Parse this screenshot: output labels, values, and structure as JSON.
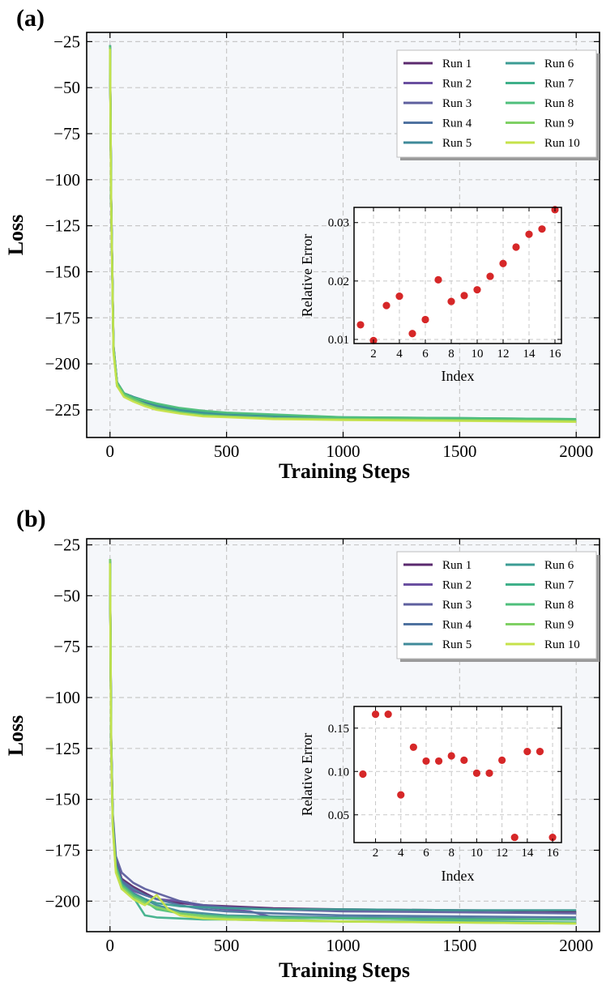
{
  "colors": {
    "plot_bg": "#f5f7fa",
    "grid": "#c8c8c8",
    "marker": "#d62728",
    "runs": [
      "#5b2a6e",
      "#6a4fa0",
      "#5e5f9e",
      "#4f72a0",
      "#3f8a99",
      "#3c9c94",
      "#3fb08a",
      "#4fbf7b",
      "#7fd064",
      "#c6e24a"
    ]
  },
  "chart_data": [
    {
      "panel": "(a)",
      "type": "line",
      "xlabel": "Training Steps",
      "ylabel": "Loss",
      "xlim": [
        -100,
        2100
      ],
      "ylim": [
        -240,
        -20
      ],
      "xticks": [
        0,
        500,
        1000,
        1500,
        2000
      ],
      "yticks": [
        -25,
        -50,
        -75,
        -100,
        -125,
        -150,
        -175,
        -200,
        -225
      ],
      "grid": true,
      "legend_position": "top-right",
      "series": [
        {
          "name": "Run 1",
          "x": [
            0,
            5,
            15,
            30,
            60,
            100,
            150,
            200,
            300,
            400,
            500,
            700,
            1000,
            1500,
            2000
          ],
          "y": [
            -27,
            -110,
            -190,
            -210,
            -216,
            -218,
            -221,
            -223,
            -226,
            -227,
            -228,
            -229,
            -229.5,
            -230,
            -230.5
          ]
        },
        {
          "name": "Run 2",
          "x": [
            0,
            5,
            15,
            30,
            60,
            100,
            150,
            200,
            300,
            400,
            500,
            700,
            1000,
            1500,
            2000
          ],
          "y": [
            -28,
            -112,
            -192,
            -211,
            -216,
            -219,
            -222,
            -224,
            -226,
            -227.5,
            -228,
            -229,
            -230,
            -230.5,
            -231
          ]
        },
        {
          "name": "Run 3",
          "x": [
            0,
            5,
            15,
            30,
            60,
            100,
            150,
            200,
            300,
            400,
            500,
            700,
            1000,
            1500,
            2000
          ],
          "y": [
            -27,
            -110,
            -191,
            -210,
            -216,
            -218,
            -221,
            -223,
            -225,
            -227,
            -227.5,
            -228.5,
            -229.5,
            -230,
            -230.5
          ]
        },
        {
          "name": "Run 4",
          "x": [
            0,
            5,
            15,
            30,
            60,
            100,
            150,
            200,
            300,
            400,
            500,
            700,
            1000,
            1500,
            2000
          ],
          "y": [
            -27,
            -111,
            -191,
            -210,
            -216,
            -218,
            -220,
            -222,
            -225,
            -226.5,
            -227,
            -228,
            -229.5,
            -230,
            -230.5
          ]
        },
        {
          "name": "Run 5",
          "x": [
            0,
            5,
            15,
            30,
            60,
            100,
            150,
            200,
            300,
            400,
            500,
            700,
            1000,
            1500,
            2000
          ],
          "y": [
            -28,
            -112,
            -192,
            -211,
            -217,
            -219,
            -221,
            -223,
            -225.5,
            -227,
            -228,
            -229,
            -230,
            -230.5,
            -231
          ]
        },
        {
          "name": "Run 6",
          "x": [
            0,
            5,
            15,
            30,
            60,
            100,
            150,
            200,
            300,
            400,
            500,
            700,
            1000,
            1500,
            2000
          ],
          "y": [
            -27,
            -110,
            -190,
            -210,
            -216,
            -218,
            -220,
            -222,
            -224.5,
            -226,
            -227,
            -228,
            -229,
            -229.5,
            -230
          ]
        },
        {
          "name": "Run 7",
          "x": [
            0,
            5,
            15,
            30,
            60,
            100,
            150,
            200,
            300,
            400,
            500,
            700,
            1000,
            1500,
            2000
          ],
          "y": [
            -28,
            -113,
            -193,
            -212,
            -217,
            -219,
            -222,
            -224,
            -226,
            -227.5,
            -228.5,
            -229.5,
            -230,
            -230.5,
            -231
          ]
        },
        {
          "name": "Run 8",
          "x": [
            0,
            5,
            15,
            30,
            60,
            100,
            150,
            200,
            300,
            400,
            500,
            700,
            1000,
            1500,
            2000
          ],
          "y": [
            -27,
            -111,
            -191,
            -210,
            -216,
            -218.5,
            -220,
            -221.5,
            -224,
            -225.5,
            -226.5,
            -227.5,
            -229,
            -229.5,
            -230
          ]
        },
        {
          "name": "Run 9",
          "x": [
            0,
            5,
            15,
            30,
            60,
            100,
            150,
            200,
            300,
            400,
            500,
            700,
            1000,
            1500,
            2000
          ],
          "y": [
            -28,
            -112,
            -192,
            -211,
            -217,
            -219.5,
            -222,
            -224,
            -226.5,
            -228,
            -228.5,
            -229.5,
            -230,
            -230.5,
            -231
          ]
        },
        {
          "name": "Run 10",
          "x": [
            0,
            5,
            15,
            30,
            60,
            100,
            150,
            200,
            300,
            400,
            500,
            700,
            1000,
            1500,
            2000
          ],
          "y": [
            -29,
            -114,
            -194,
            -212,
            -218,
            -220.5,
            -223,
            -225,
            -227,
            -228.5,
            -229,
            -230,
            -230.5,
            -231,
            -231.5
          ]
        }
      ],
      "inset": {
        "type": "scatter",
        "xlabel": "Index",
        "ylabel": "Relative Error",
        "xlim": [
          0.5,
          16.5
        ],
        "ylim": [
          0.0093,
          0.0326
        ],
        "xticks": [
          2,
          4,
          6,
          8,
          10,
          12,
          14,
          16
        ],
        "yticks": [
          0.01,
          0.02,
          0.03
        ],
        "ytick_labels": [
          "0.01",
          "0.02",
          "0.03"
        ],
        "x": [
          1,
          2,
          3,
          4,
          5,
          6,
          7,
          8,
          9,
          10,
          11,
          12,
          13,
          14,
          15,
          16
        ],
        "y": [
          0.0125,
          0.0098,
          0.0158,
          0.0174,
          0.011,
          0.0134,
          0.0202,
          0.0165,
          0.0175,
          0.0185,
          0.0208,
          0.023,
          0.0258,
          0.028,
          0.0289,
          0.0322
        ]
      }
    },
    {
      "panel": "(b)",
      "type": "line",
      "xlabel": "Training Steps",
      "ylabel": "Loss",
      "xlim": [
        -100,
        2100
      ],
      "ylim": [
        -215,
        -22
      ],
      "xticks": [
        0,
        500,
        1000,
        1500,
        2000
      ],
      "yticks": [
        -25,
        -50,
        -75,
        -100,
        -125,
        -150,
        -175,
        -200
      ],
      "grid": true,
      "legend_position": "top-right",
      "series": [
        {
          "name": "Run 1",
          "x": [
            0,
            5,
            12,
            25,
            50,
            100,
            150,
            200,
            300,
            400,
            500,
            700,
            1000,
            1500,
            2000
          ],
          "y": [
            -32,
            -120,
            -158,
            -180,
            -189,
            -193,
            -196,
            -199,
            -201,
            -202,
            -202.5,
            -203.5,
            -204,
            -204.5,
            -205
          ]
        },
        {
          "name": "Run 2",
          "x": [
            0,
            5,
            12,
            25,
            50,
            100,
            150,
            200,
            300,
            400,
            500,
            600,
            700,
            1000,
            1500,
            2000
          ],
          "y": [
            -33,
            -122,
            -160,
            -182,
            -190,
            -195,
            -197,
            -199,
            -200,
            -203,
            -204,
            -205,
            -208,
            -208.5,
            -209,
            -209
          ]
        },
        {
          "name": "Run 3",
          "x": [
            0,
            5,
            12,
            25,
            50,
            100,
            150,
            200,
            300,
            400,
            500,
            700,
            1000,
            1500,
            2000
          ],
          "y": [
            -32,
            -118,
            -157,
            -178,
            -186,
            -191,
            -194,
            -196,
            -200,
            -202,
            -203,
            -204,
            -205,
            -205.5,
            -206
          ]
        },
        {
          "name": "Run 4",
          "x": [
            0,
            5,
            12,
            25,
            50,
            100,
            150,
            200,
            300,
            400,
            500,
            700,
            1000,
            1500,
            2000
          ],
          "y": [
            -33,
            -121,
            -159,
            -181,
            -190,
            -194,
            -197,
            -199,
            -202,
            -204,
            -205,
            -206,
            -207,
            -207.5,
            -208
          ]
        },
        {
          "name": "Run 5",
          "x": [
            0,
            5,
            12,
            25,
            50,
            100,
            150,
            200,
            300,
            400,
            500,
            700,
            1000,
            1500,
            2000
          ],
          "y": [
            -32,
            -120,
            -160,
            -182,
            -191,
            -196,
            -199,
            -202,
            -205,
            -206,
            -207,
            -207.5,
            -208,
            -208.5,
            -209
          ]
        },
        {
          "name": "Run 6",
          "x": [
            0,
            5,
            12,
            25,
            50,
            100,
            150,
            200,
            300,
            400,
            500,
            700,
            1000,
            1500,
            2000
          ],
          "y": [
            -33,
            -123,
            -162,
            -184,
            -192,
            -197,
            -199,
            -201,
            -202.5,
            -203,
            -203.5,
            -204,
            -204,
            -204.5,
            -204.5
          ]
        },
        {
          "name": "Run 7",
          "x": [
            0,
            5,
            12,
            25,
            50,
            100,
            150,
            200,
            300,
            400,
            500,
            700,
            1000,
            1500,
            2000
          ],
          "y": [
            -32,
            -124,
            -163,
            -185,
            -194,
            -198,
            -207,
            -208,
            -208.5,
            -209,
            -209,
            -209.5,
            -210,
            -210,
            -210.5
          ]
        },
        {
          "name": "Run 8",
          "x": [
            0,
            5,
            12,
            25,
            50,
            100,
            150,
            200,
            300,
            400,
            500,
            700,
            1000,
            1500,
            2000
          ],
          "y": [
            -33,
            -121,
            -161,
            -183,
            -192,
            -197,
            -200,
            -204,
            -206,
            -207,
            -207.5,
            -208,
            -208.5,
            -209,
            -209
          ]
        },
        {
          "name": "Run 9",
          "x": [
            0,
            5,
            12,
            25,
            50,
            100,
            150,
            200,
            300,
            400,
            500,
            700,
            1000,
            1500,
            2000
          ],
          "y": [
            -32,
            -122,
            -162,
            -184,
            -193,
            -198,
            -201,
            -203,
            -206,
            -207.5,
            -208.5,
            -209,
            -210,
            -210.5,
            -211
          ]
        },
        {
          "name": "Run 10",
          "x": [
            0,
            5,
            12,
            25,
            50,
            100,
            150,
            200,
            250,
            300,
            400,
            500,
            700,
            1000,
            1500,
            2000
          ],
          "y": [
            -34,
            -125,
            -164,
            -186,
            -194,
            -199,
            -202,
            -197,
            -204,
            -207,
            -208.5,
            -209,
            -209.5,
            -210,
            -210.5,
            -211
          ]
        }
      ],
      "inset": {
        "type": "scatter",
        "xlabel": "Index",
        "ylabel": "Relative Error",
        "xlim": [
          0.3,
          16.7
        ],
        "ylim": [
          0.018,
          0.175
        ],
        "xticks": [
          2,
          4,
          6,
          8,
          10,
          12,
          14,
          16
        ],
        "yticks": [
          0.05,
          0.1,
          0.15
        ],
        "ytick_labels": [
          "0.05",
          "0.10",
          "0.15"
        ],
        "x": [
          1,
          2,
          3,
          4,
          5,
          6,
          7,
          8,
          9,
          10,
          11,
          12,
          13,
          14,
          15,
          16
        ],
        "y": [
          0.097,
          0.166,
          0.166,
          0.073,
          0.128,
          0.112,
          0.112,
          0.118,
          0.113,
          0.098,
          0.098,
          0.113,
          0.024,
          0.123,
          0.123,
          0.024
        ]
      }
    }
  ]
}
